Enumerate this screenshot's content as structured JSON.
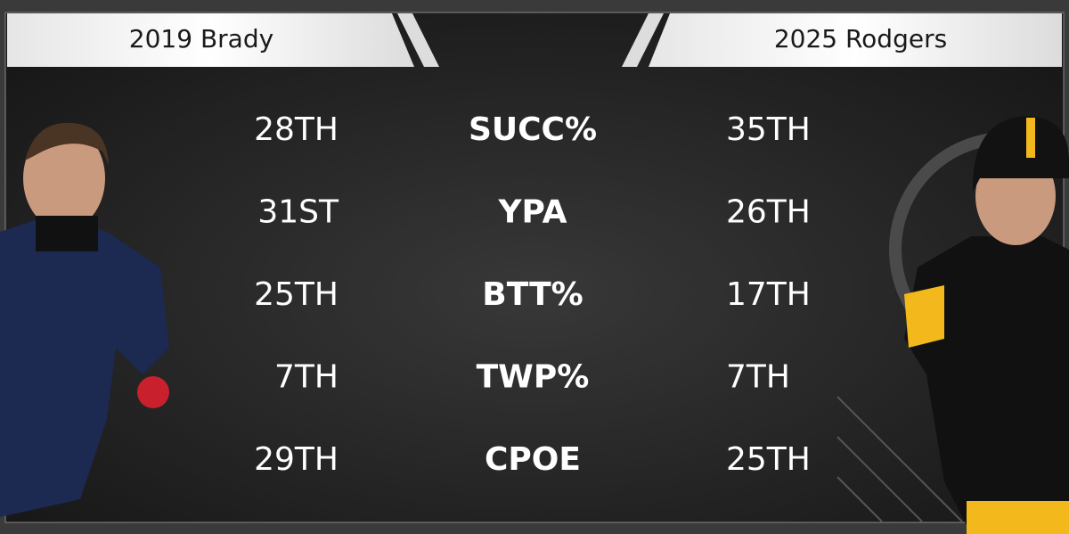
{
  "header": {
    "left": "2019 Brady",
    "right": "2025 Rodgers"
  },
  "table": {
    "rows": [
      [
        "SUCC%",
        "28TH",
        "35TH"
      ],
      [
        "YPA",
        "31ST",
        "26TH"
      ],
      [
        "BTT%",
        "25TH",
        "17TH"
      ],
      [
        "TWP%",
        "7TH",
        "7TH"
      ],
      [
        "CPOE",
        "29TH",
        "25TH"
      ]
    ]
  }
}
